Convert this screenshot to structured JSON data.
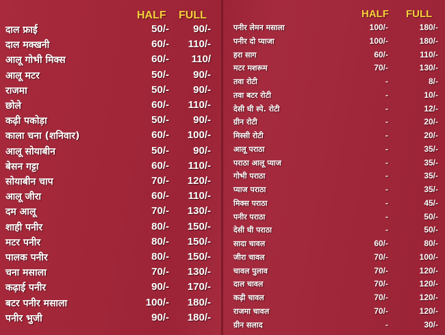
{
  "colors": {
    "background": "#a02739",
    "header": "#f6d23c",
    "text": "#ffffff"
  },
  "left": {
    "half_label": "HALF",
    "full_label": "FULL",
    "items": [
      {
        "name": "दाल फ्राई",
        "half": "50/-",
        "full": "90/-"
      },
      {
        "name": "दाल मक्खनी",
        "half": "60/-",
        "full": "110/-"
      },
      {
        "name": "आलू गोभी मिक्स",
        "half": "60/-",
        "full": "110/"
      },
      {
        "name": "आलू मटर",
        "half": "50/-",
        "full": "90/-"
      },
      {
        "name": "राजमा",
        "half": "50/-",
        "full": "90/-"
      },
      {
        "name": "छोले",
        "half": "60/-",
        "full": "110/-"
      },
      {
        "name": "कढ़ी पकोड़ा",
        "half": "50/-",
        "full": "90/-"
      },
      {
        "name": "काला चना (शनिवार)",
        "half": "60/-",
        "full": "100/-"
      },
      {
        "name": "आलू सोयाबीन",
        "half": "50/-",
        "full": "90/-"
      },
      {
        "name": "बेसन गट्टा",
        "half": "60/-",
        "full": "110/-"
      },
      {
        "name": "सोयाबीन चाप",
        "half": "70/-",
        "full": "120/-"
      },
      {
        "name": "आलू जीरा",
        "half": "60/-",
        "full": "110/-"
      },
      {
        "name": "दम आलू",
        "half": "70/-",
        "full": "130/-"
      },
      {
        "name": "शाही पनीर",
        "half": "80/-",
        "full": "150/-"
      },
      {
        "name": "मटर पनीर",
        "half": "80/-",
        "full": "150/-"
      },
      {
        "name": "पालक पनीर",
        "half": "80/-",
        "full": "150/-"
      },
      {
        "name": "चना मसाला",
        "half": "70/-",
        "full": "130/-"
      },
      {
        "name": "कढ़ाई पनीर",
        "half": "90/-",
        "full": "170/-"
      },
      {
        "name": "बटर पनीर मसाला",
        "half": "100/-",
        "full": "180/-"
      },
      {
        "name": "पनीर भुजी",
        "half": "90/-",
        "full": "180/-"
      }
    ]
  },
  "right": {
    "half_label": "HALF",
    "full_label": "FULL",
    "items": [
      {
        "name": "पनीर लेमन मसाला",
        "half": "100/-",
        "full": "180/-"
      },
      {
        "name": "पनीर दो प्याजा",
        "half": "100/-",
        "full": "180/-"
      },
      {
        "name": "हरा साग",
        "half": "60/-",
        "full": "110/-"
      },
      {
        "name": "मटर मशरूम",
        "half": "70/-",
        "full": "130/-"
      },
      {
        "name": "तवा रोटी",
        "half": "-",
        "full": "8/-"
      },
      {
        "name": "तवा बटर  रोटी",
        "half": "-",
        "full": "10/-"
      },
      {
        "name": "देसी घी स्पे. रोटी",
        "half": "-",
        "full": "12/-"
      },
      {
        "name": "ग्रीन रोटी",
        "half": "-",
        "full": "20/-"
      },
      {
        "name": "मिस्सी रोटी",
        "half": "-",
        "full": "20/-"
      },
      {
        "name": "आलू पराठा",
        "half": "-",
        "full": "35/-"
      },
      {
        "name": "पराठा आलू प्याज",
        "half": "-",
        "full": "35/-"
      },
      {
        "name": "गोभी पराठा",
        "half": "-",
        "full": "35/-"
      },
      {
        "name": "प्याज पराठा",
        "half": "-",
        "full": "35/-"
      },
      {
        "name": "मिक्स पराठा",
        "half": "-",
        "full": "45/-"
      },
      {
        "name": "पनीर पराठा",
        "half": "-",
        "full": "50/-"
      },
      {
        "name": "देसी घी पराठा",
        "half": "-",
        "full": "50/-"
      },
      {
        "name": "सादा चावल",
        "half": "60/-",
        "full": "80/-"
      },
      {
        "name": "जीरा चावल",
        "half": "70/-",
        "full": "100/-"
      },
      {
        "name": "चावल पुलाव",
        "half": "70/-",
        "full": "120/-"
      },
      {
        "name": "दाल चावल",
        "half": "70/-",
        "full": "120/-"
      },
      {
        "name": "कढ़ी चावल",
        "half": "70/-",
        "full": "120/-"
      },
      {
        "name": "राजमा चावल",
        "half": "70/-",
        "full": "120/-"
      },
      {
        "name": "ग्रीन सलाद",
        "half": "-",
        "full": "30/-"
      }
    ]
  }
}
